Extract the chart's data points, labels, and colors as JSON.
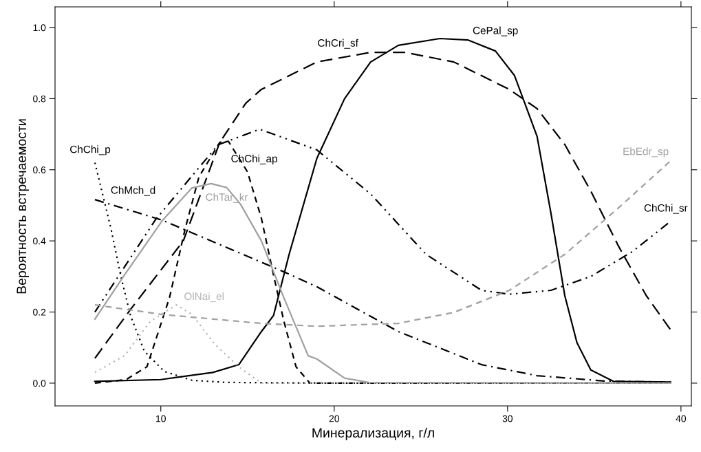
{
  "chart_data": {
    "type": "line",
    "xlabel": "Минерализация, г/л",
    "ylabel": "Вероятность встречаемости",
    "xlim": [
      3.9,
      40.6
    ],
    "ylim": [
      -0.064,
      1.058
    ],
    "xticks": [
      10,
      20,
      30,
      40
    ],
    "yticks": [
      {
        "value": 0,
        "label": "0.0"
      },
      {
        "value": 0.2,
        "label": "0.2"
      },
      {
        "value": 0.4,
        "label": "0.4"
      },
      {
        "value": 0.6,
        "label": "0.6"
      },
      {
        "value": 0.8,
        "label": "0.8"
      },
      {
        "value": 1.0,
        "label": "1.0"
      }
    ],
    "grid": false,
    "series": [
      {
        "name": "ChChi_p",
        "color": "#000000",
        "line_style": "dotted",
        "x": [
          6.2,
          7.1,
          7.7,
          8.25,
          9.05,
          10.2,
          11.8,
          13.8,
          20,
          30,
          39.4
        ],
        "values": [
          0.62,
          0.44,
          0.3,
          0.19,
          0.09,
          0.033,
          0.008,
          0.002,
          0.0,
          0.0,
          0.0
        ]
      },
      {
        "name": "ChMch_d",
        "color": "#000000",
        "line_style": "dashdot",
        "x": [
          6.2,
          10.1,
          15.8,
          17.1,
          19.0,
          23.7,
          28.5,
          31.7,
          35.6,
          39.4
        ],
        "values": [
          0.516,
          0.458,
          0.34,
          0.313,
          0.271,
          0.145,
          0.052,
          0.021,
          0.006,
          0.003
        ]
      },
      {
        "name": "ChChi_sr",
        "color": "#000000",
        "line_style": "dashdotdot",
        "x": [
          6.2,
          9.7,
          13.3,
          15.7,
          19.0,
          22.1,
          25.3,
          28.5,
          30.1,
          32.5,
          34.8,
          37.2,
          39.4
        ],
        "values": [
          0.2,
          0.46,
          0.67,
          0.714,
          0.656,
          0.532,
          0.362,
          0.261,
          0.25,
          0.261,
          0.3,
          0.37,
          0.455
        ]
      },
      {
        "name": "ChCri_sf",
        "color": "#000000",
        "line_style": "longdash",
        "x": [
          6.2,
          8.25,
          11.3,
          13.4,
          14.9,
          15.8,
          19.0,
          22.1,
          24.1,
          26.9,
          30.1,
          31.7,
          33.3,
          34.8,
          36.4,
          38.0,
          39.4
        ],
        "values": [
          0.07,
          0.207,
          0.4,
          0.677,
          0.787,
          0.826,
          0.903,
          0.93,
          0.93,
          0.903,
          0.826,
          0.772,
          0.671,
          0.54,
          0.385,
          0.246,
          0.15
        ]
      },
      {
        "name": "CePal_sp",
        "color": "#000000",
        "line_style": "solid",
        "x": [
          6.2,
          10,
          13,
          14.5,
          15.8,
          16.5,
          17.4,
          19.0,
          20.6,
          22.1,
          23.7,
          26.1,
          27.7,
          29.3,
          30.4,
          31.7,
          32.5,
          33.3,
          34.0,
          34.8,
          36.1,
          39.4
        ],
        "values": [
          0.005,
          0.01,
          0.03,
          0.052,
          0.145,
          0.19,
          0.362,
          0.632,
          0.8,
          0.903,
          0.95,
          0.969,
          0.965,
          0.934,
          0.865,
          0.694,
          0.478,
          0.246,
          0.114,
          0.037,
          0.005,
          0.003
        ]
      },
      {
        "name": "ChChi_ap",
        "color": "#000000",
        "line_style": "dashed",
        "x": [
          6.2,
          8.0,
          9.2,
          10.5,
          11.4,
          12.2,
          13.4,
          13.9,
          15.0,
          15.8,
          16.5,
          17.1,
          17.8,
          18.6,
          20,
          39.4
        ],
        "values": [
          0.0,
          0.01,
          0.046,
          0.24,
          0.433,
          0.58,
          0.677,
          0.68,
          0.594,
          0.464,
          0.304,
          0.174,
          0.046,
          0.0,
          0.0,
          0.0
        ]
      },
      {
        "name": "ChTar_kr",
        "color": "#a0a0a0",
        "line_style": "solid",
        "x": [
          6.2,
          7.9,
          10.1,
          11.8,
          12.9,
          13.8,
          14.6,
          15.8,
          17.1,
          18.5,
          19.0,
          20.6,
          22.0,
          39.4
        ],
        "values": [
          0.18,
          0.304,
          0.458,
          0.549,
          0.561,
          0.55,
          0.503,
          0.4,
          0.24,
          0.077,
          0.068,
          0.014,
          0.002,
          0.0
        ]
      },
      {
        "name": "EbEdr_sp",
        "color": "#a0a0a0",
        "line_style": "dashed",
        "x": [
          6.2,
          10.1,
          15.8,
          19.0,
          23.7,
          26.9,
          30.1,
          33.3,
          36.4,
          39.4
        ],
        "values": [
          0.22,
          0.193,
          0.168,
          0.16,
          0.168,
          0.199,
          0.261,
          0.362,
          0.493,
          0.625
        ]
      },
      {
        "name": "OlNai_el",
        "color": "#b4b4b4",
        "line_style": "dotted",
        "x": [
          6.2,
          7.9,
          9.4,
          10.9,
          11.8,
          13.1,
          14.5,
          15.8,
          20,
          39.4
        ],
        "values": [
          0.03,
          0.077,
          0.174,
          0.22,
          0.193,
          0.11,
          0.046,
          0.0,
          0.0,
          0.0
        ]
      }
    ]
  }
}
